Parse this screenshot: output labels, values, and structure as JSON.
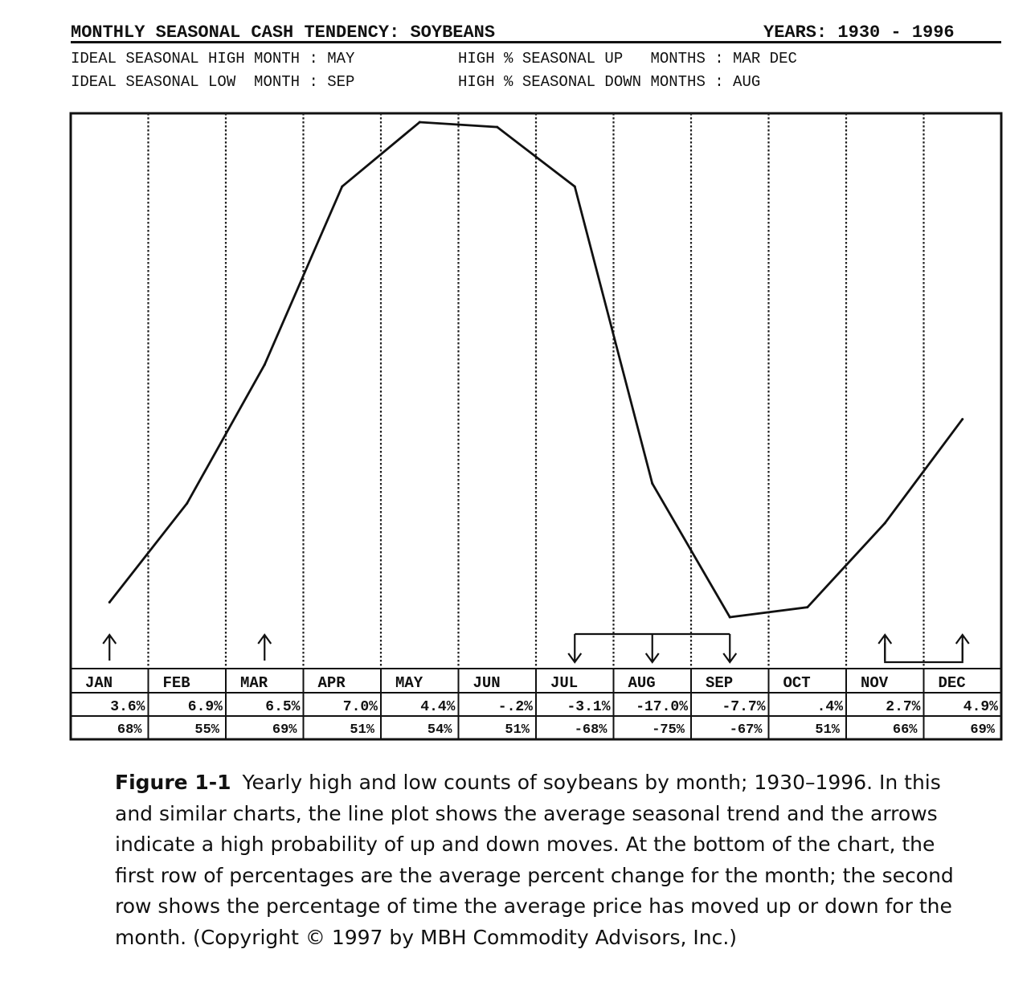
{
  "header": {
    "title": "MONTHLY SEASONAL CASH TENDENCY: SOYBEANS",
    "years": "YEARS: 1930 - 1996",
    "high_month": "IDEAL SEASONAL HIGH MONTH : MAY",
    "high_up": "HIGH % SEASONAL UP   MONTHS : MAR DEC",
    "low_month": "IDEAL SEASONAL LOW  MONTH : SEP",
    "high_down": "HIGH % SEASONAL DOWN MONTHS : AUG"
  },
  "chart_data": {
    "type": "line",
    "title": "MONTHLY SEASONAL CASH TENDENCY: SOYBEANS",
    "categories": [
      "JAN",
      "FEB",
      "MAR",
      "APR",
      "MAY",
      "JUN",
      "JUL",
      "AUG",
      "SEP",
      "OCT",
      "NOV",
      "DEC"
    ],
    "series": [
      {
        "values": [
          0.03,
          0.23,
          0.51,
          0.87,
          1.0,
          0.99,
          0.87,
          0.27,
          0.0,
          0.02,
          0.19,
          0.4
        ]
      }
    ],
    "ylim": [
      0,
      1
    ],
    "grid": "vertical dotted month dividers",
    "up_arrows": [
      "JAN",
      "MAR",
      "NOV",
      "DEC"
    ],
    "down_arrows": [
      "JUL",
      "AUG",
      "SEP"
    ],
    "bracket_groups": [
      [
        "JUL",
        "AUG",
        "SEP"
      ],
      [
        "NOV",
        "DEC"
      ]
    ],
    "avg_change": [
      "3.6%",
      "6.9%",
      "6.5%",
      "7.0%",
      "4.4%",
      "-.2%",
      "-3.1%",
      "-17.0%",
      "-7.7%",
      ".4%",
      "2.7%",
      "4.9%"
    ],
    "pct_time": [
      "68%",
      "55%",
      "69%",
      "51%",
      "54%",
      "51%",
      "-68%",
      "-75%",
      "-67%",
      "51%",
      "66%",
      "69%"
    ],
    "colors": {
      "line": "#111111",
      "frame": "#111111",
      "grid": "#222222"
    }
  },
  "caption": {
    "label": "Figure 1-1",
    "text": "Yearly high and low counts of soybeans by month; 1930–1996. In this and similar charts, the line plot shows the average seasonal trend and the arrows indicate a high probability of up and down moves. At the bottom of the chart, the first row of percentages are the average percent change for the month; the second row shows the percentage of time the average price has moved up or down for the month. (Copyright © 1997 by MBH Commodity Advisors, Inc.)"
  }
}
